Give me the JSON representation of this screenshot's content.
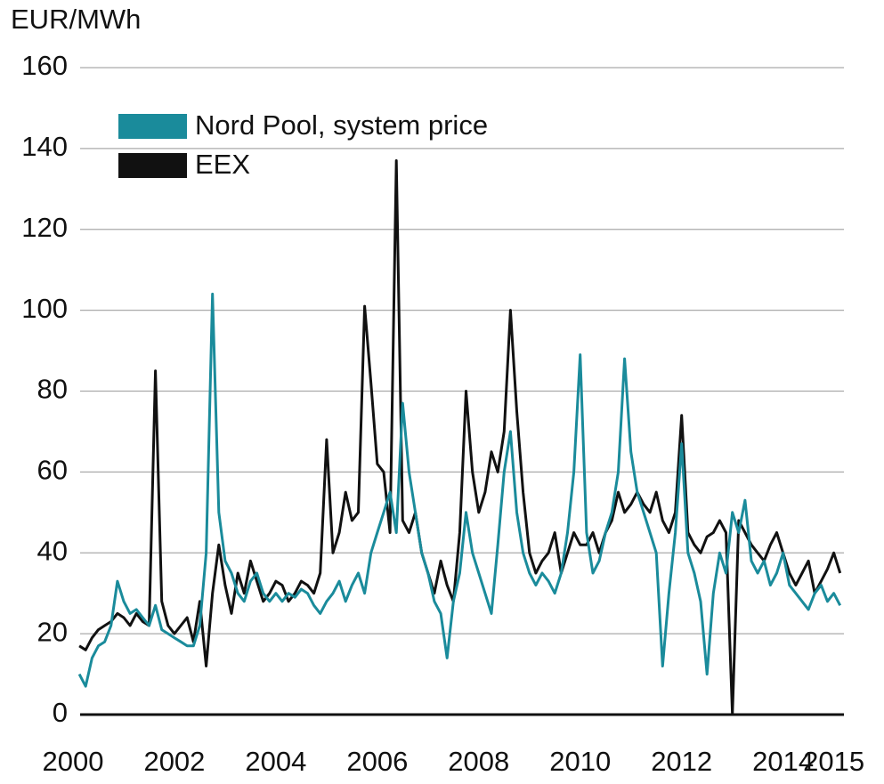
{
  "chart_data": {
    "type": "line",
    "y_label": "EUR/MWh",
    "legend": "upper left",
    "grid": true,
    "xlim": [
      2000,
      2015.2
    ],
    "xticks": [
      2000,
      2002,
      2004,
      2006,
      2008,
      2010,
      2012,
      2014,
      2015
    ],
    "ylim": [
      0,
      160
    ],
    "yticks": [
      0,
      20,
      40,
      60,
      80,
      100,
      120,
      140,
      160
    ],
    "x": [
      2000.125,
      2000.25,
      2000.375,
      2000.5,
      2000.625,
      2000.75,
      2000.875,
      2001,
      2001.125,
      2001.25,
      2001.375,
      2001.5,
      2001.625,
      2001.75,
      2001.875,
      2002,
      2002.125,
      2002.25,
      2002.375,
      2002.5,
      2002.625,
      2002.75,
      2002.875,
      2003,
      2003.125,
      2003.25,
      2003.375,
      2003.5,
      2003.625,
      2003.75,
      2003.875,
      2004,
      2004.125,
      2004.25,
      2004.375,
      2004.5,
      2004.625,
      2004.75,
      2004.875,
      2005,
      2005.125,
      2005.25,
      2005.375,
      2005.5,
      2005.625,
      2005.75,
      2005.875,
      2006,
      2006.125,
      2006.25,
      2006.375,
      2006.5,
      2006.625,
      2006.75,
      2006.875,
      2007,
      2007.125,
      2007.25,
      2007.375,
      2007.5,
      2007.625,
      2007.75,
      2007.875,
      2008,
      2008.125,
      2008.25,
      2008.375,
      2008.5,
      2008.625,
      2008.75,
      2008.875,
      2009,
      2009.125,
      2009.25,
      2009.375,
      2009.5,
      2009.625,
      2009.75,
      2009.875,
      2010,
      2010.125,
      2010.25,
      2010.375,
      2010.5,
      2010.625,
      2010.75,
      2010.875,
      2011,
      2011.125,
      2011.25,
      2011.375,
      2011.5,
      2011.625,
      2011.75,
      2011.875,
      2012,
      2012.125,
      2012.25,
      2012.375,
      2012.5,
      2012.625,
      2012.75,
      2012.875,
      2013,
      2013.125,
      2013.25,
      2013.375,
      2013.5,
      2013.625,
      2013.75,
      2013.875,
      2014,
      2014.125,
      2014.25,
      2014.375,
      2014.5,
      2014.625,
      2014.75,
      2014.875,
      2015,
      2015.125
    ],
    "series": [
      {
        "name": "EEX",
        "color": "#111111",
        "values": [
          17,
          16,
          19,
          21,
          22,
          23,
          25,
          24,
          22,
          25,
          23,
          22,
          85,
          28,
          22,
          20,
          22,
          24,
          18,
          28,
          12,
          30,
          42,
          32,
          25,
          35,
          30,
          38,
          33,
          28,
          30,
          33,
          32,
          28,
          30,
          33,
          32,
          30,
          35,
          68,
          40,
          45,
          55,
          48,
          50,
          101,
          82,
          62,
          60,
          45,
          137,
          48,
          45,
          50,
          40,
          35,
          30,
          38,
          32,
          28,
          45,
          80,
          60,
          50,
          55,
          65,
          60,
          70,
          100,
          75,
          55,
          40,
          35,
          38,
          40,
          45,
          35,
          40,
          45,
          42,
          42,
          45,
          40,
          45,
          48,
          55,
          50,
          52,
          55,
          52,
          50,
          55,
          48,
          45,
          50,
          74,
          45,
          42,
          40,
          44,
          45,
          48,
          45,
          0,
          48,
          45,
          42,
          40,
          38,
          42,
          45,
          40,
          35,
          32,
          35,
          38,
          30,
          33,
          36,
          40,
          35
        ]
      },
      {
        "name": "Nord Pool, system price",
        "color": "#1a8b9b",
        "values": [
          10,
          7,
          14,
          17,
          18,
          22,
          33,
          28,
          25,
          26,
          24,
          22,
          27,
          21,
          20,
          19,
          18,
          17,
          17,
          22,
          40,
          104,
          50,
          38,
          35,
          30,
          28,
          33,
          35,
          30,
          28,
          30,
          28,
          30,
          29,
          31,
          30,
          27,
          25,
          28,
          30,
          33,
          28,
          32,
          35,
          30,
          40,
          45,
          50,
          55,
          45,
          77,
          60,
          50,
          40,
          35,
          28,
          25,
          14,
          28,
          35,
          50,
          40,
          35,
          30,
          25,
          42,
          60,
          70,
          50,
          40,
          35,
          32,
          35,
          33,
          30,
          35,
          45,
          60,
          89,
          45,
          35,
          38,
          45,
          50,
          60,
          88,
          65,
          55,
          50,
          45,
          40,
          12,
          30,
          45,
          67,
          40,
          35,
          28,
          10,
          30,
          40,
          35,
          50,
          45,
          53,
          38,
          35,
          38,
          32,
          35,
          40,
          32,
          30,
          28,
          26,
          30,
          32,
          28,
          30,
          27
        ]
      }
    ]
  }
}
